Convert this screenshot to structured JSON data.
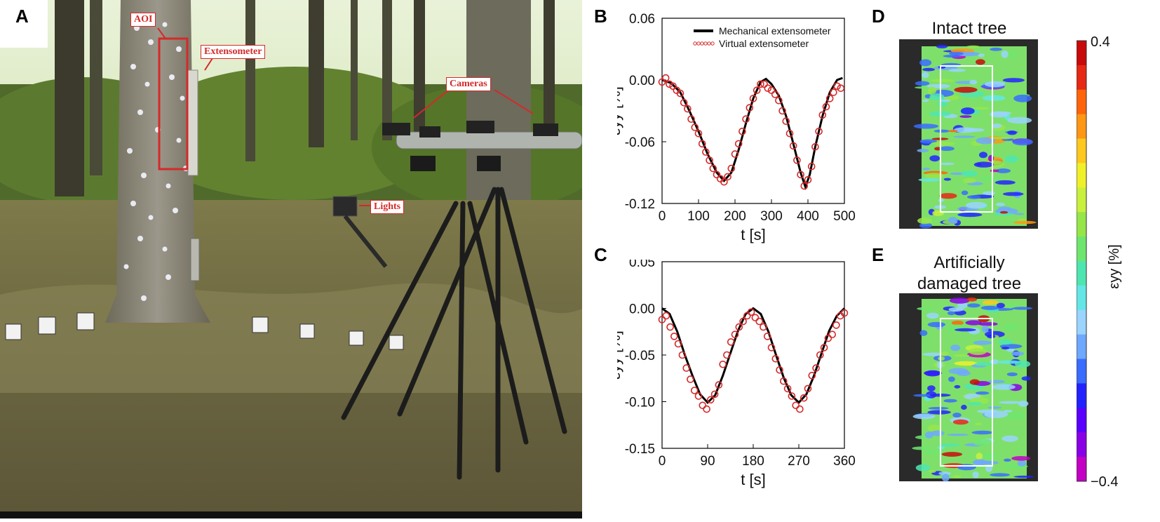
{
  "panels": {
    "A": "A",
    "B": "B",
    "C": "C",
    "D": "D",
    "E": "E"
  },
  "photo": {
    "labels": {
      "aoi": "AOI",
      "extensometer": "Extensometer",
      "cameras": "Cameras",
      "lights": "Lights"
    },
    "annotation_color": "#d42a2a"
  },
  "chart_data": [
    {
      "id": "B",
      "type": "line",
      "xlabel": "t [s]",
      "ylabel": "εyy [%]",
      "xlim": [
        0,
        500
      ],
      "ylim": [
        -0.12,
        0.06
      ],
      "xticks": [
        0,
        100,
        200,
        300,
        400,
        500
      ],
      "yticks": [
        0.06,
        0.0,
        -0.06,
        -0.12
      ],
      "ytick_labels": [
        "0.06",
        "0.00",
        "-0.06",
        "-0.12"
      ],
      "legend_position": "top-right",
      "series": [
        {
          "name": "Mechanical extensometer",
          "style": "line",
          "color": "#000000",
          "x": [
            0,
            25,
            50,
            75,
            100,
            125,
            150,
            170,
            190,
            210,
            230,
            250,
            270,
            285,
            300,
            320,
            340,
            360,
            380,
            393,
            405,
            420,
            440,
            460,
            480,
            495
          ],
          "y": [
            0.0,
            -0.003,
            -0.012,
            -0.03,
            -0.05,
            -0.072,
            -0.09,
            -0.098,
            -0.09,
            -0.068,
            -0.042,
            -0.018,
            -0.002,
            0.001,
            -0.004,
            -0.015,
            -0.035,
            -0.062,
            -0.09,
            -0.104,
            -0.092,
            -0.065,
            -0.035,
            -0.012,
            0.0,
            0.002
          ]
        },
        {
          "name": "Virtual extensometer",
          "style": "scatter-open-circle",
          "color": "#d42a2a",
          "x": [
            0,
            10,
            20,
            30,
            40,
            50,
            60,
            70,
            80,
            90,
            100,
            110,
            120,
            130,
            140,
            150,
            160,
            170,
            180,
            190,
            200,
            210,
            220,
            230,
            240,
            250,
            260,
            270,
            280,
            290,
            300,
            310,
            320,
            330,
            340,
            350,
            360,
            370,
            380,
            390,
            400,
            410,
            420,
            430,
            440,
            450,
            460,
            470,
            480,
            490
          ],
          "y": [
            -0.002,
            0.002,
            -0.004,
            -0.006,
            -0.01,
            -0.013,
            -0.022,
            -0.028,
            -0.038,
            -0.046,
            -0.052,
            -0.062,
            -0.07,
            -0.078,
            -0.086,
            -0.092,
            -0.096,
            -0.099,
            -0.094,
            -0.086,
            -0.072,
            -0.062,
            -0.05,
            -0.038,
            -0.027,
            -0.018,
            -0.01,
            -0.004,
            -0.004,
            -0.008,
            -0.01,
            -0.014,
            -0.02,
            -0.03,
            -0.04,
            -0.052,
            -0.064,
            -0.078,
            -0.092,
            -0.103,
            -0.097,
            -0.084,
            -0.065,
            -0.05,
            -0.034,
            -0.026,
            -0.018,
            -0.012,
            -0.006,
            -0.008
          ]
        }
      ]
    },
    {
      "id": "C",
      "type": "line",
      "xlabel": "t [s]",
      "ylabel": "εyy [%]",
      "xlim": [
        0,
        360
      ],
      "ylim": [
        -0.15,
        0.05
      ],
      "xticks": [
        0,
        90,
        180,
        270,
        360
      ],
      "yticks": [
        0.05,
        0.0,
        -0.05,
        -0.1,
        -0.15
      ],
      "ytick_labels": [
        "0.05",
        "0.00",
        "-0.05",
        "-0.10",
        "-0.15"
      ],
      "series": [
        {
          "name": "Mechanical extensometer",
          "style": "line",
          "color": "#000000",
          "x": [
            0,
            15,
            30,
            45,
            60,
            75,
            90,
            105,
            120,
            135,
            150,
            165,
            180,
            195,
            210,
            225,
            240,
            255,
            270,
            285,
            300,
            315,
            330,
            345,
            360
          ],
          "y": [
            0.0,
            -0.006,
            -0.025,
            -0.05,
            -0.072,
            -0.092,
            -0.101,
            -0.093,
            -0.072,
            -0.048,
            -0.024,
            -0.006,
            0.0,
            -0.006,
            -0.025,
            -0.05,
            -0.074,
            -0.093,
            -0.101,
            -0.092,
            -0.072,
            -0.048,
            -0.024,
            -0.008,
            0.0
          ]
        },
        {
          "name": "Virtual extensometer",
          "style": "scatter-open-circle",
          "color": "#d42a2a",
          "x": [
            0,
            8,
            16,
            24,
            32,
            40,
            48,
            56,
            64,
            72,
            80,
            88,
            96,
            104,
            112,
            120,
            128,
            136,
            144,
            152,
            160,
            168,
            176,
            184,
            192,
            200,
            208,
            216,
            224,
            232,
            240,
            248,
            256,
            264,
            272,
            280,
            288,
            296,
            304,
            312,
            320,
            328,
            336,
            344,
            352,
            360
          ],
          "y": [
            -0.012,
            -0.008,
            -0.02,
            -0.03,
            -0.038,
            -0.05,
            -0.064,
            -0.076,
            -0.088,
            -0.094,
            -0.104,
            -0.108,
            -0.098,
            -0.092,
            -0.082,
            -0.06,
            -0.05,
            -0.036,
            -0.028,
            -0.02,
            -0.014,
            -0.008,
            -0.004,
            -0.01,
            -0.014,
            -0.02,
            -0.03,
            -0.042,
            -0.054,
            -0.066,
            -0.078,
            -0.086,
            -0.094,
            -0.104,
            -0.108,
            -0.096,
            -0.086,
            -0.072,
            -0.064,
            -0.05,
            -0.042,
            -0.032,
            -0.028,
            -0.018,
            -0.008,
            -0.005
          ]
        }
      ]
    }
  ],
  "maps": {
    "D": {
      "title": "Intact tree"
    },
    "E": {
      "title_line1": "Artificially",
      "title_line2": "damaged tree"
    }
  },
  "colorbar": {
    "max_label": "0.4",
    "min_label": "−0.4",
    "label": "εyy [%]",
    "colors": [
      "#c300c3",
      "#8a00e6",
      "#5a00ff",
      "#2222ff",
      "#3a6cff",
      "#6fa8ff",
      "#9ad4ff",
      "#64e6e6",
      "#4ee6b0",
      "#6ee66e",
      "#96e64a",
      "#c8f03c",
      "#f0f028",
      "#ffc81e",
      "#ff9614",
      "#ff640a",
      "#e62814",
      "#c80a0a"
    ]
  }
}
